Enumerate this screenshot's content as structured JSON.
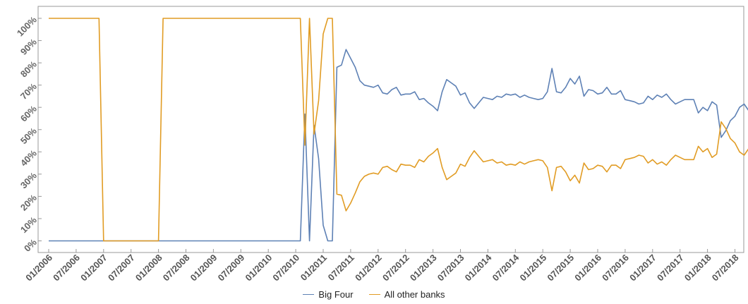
{
  "chart_data": {
    "type": "line",
    "title": "",
    "xlabel": "",
    "ylabel": "",
    "ylim": [
      0,
      100
    ],
    "y_ticks": [
      0,
      10,
      20,
      30,
      40,
      50,
      60,
      70,
      80,
      90,
      100
    ],
    "y_tick_labels": [
      "0%",
      "10%",
      "20%",
      "30%",
      "40%",
      "50%",
      "60%",
      "70%",
      "80%",
      "90%",
      "100%"
    ],
    "x_tick_labels": [
      "01/2006",
      "07/2006",
      "01/2007",
      "07/2007",
      "01/2008",
      "07/2008",
      "01/2009",
      "07/2009",
      "01/2010",
      "07/2010",
      "01/2011",
      "07/2011",
      "01/2012",
      "07/2012",
      "01/2013",
      "07/2013",
      "01/2014",
      "07/2014",
      "01/2015",
      "07/2015",
      "01/2016",
      "07/2016",
      "01/2017",
      "07/2017",
      "01/2018",
      "07/2018"
    ],
    "grid": false,
    "legend_position": "bottom-center",
    "series": [
      {
        "name": "Big Four",
        "color": "#5E81B5",
        "points": [
          [
            "2006-01",
            0
          ],
          [
            "2010-08",
            0
          ],
          [
            "2010-09",
            57
          ],
          [
            "2010-10",
            0
          ],
          [
            "2010-11",
            52
          ],
          [
            "2010-12",
            37
          ],
          [
            "2011-01",
            7
          ],
          [
            "2011-02",
            0
          ],
          [
            "2011-03",
            0
          ],
          [
            "2011-04",
            78
          ],
          [
            "2011-05",
            79
          ],
          [
            "2011-06",
            86
          ],
          [
            "2011-07",
            82
          ],
          [
            "2011-08",
            78
          ],
          [
            "2011-09",
            72
          ],
          [
            "2011-10",
            70
          ],
          [
            "2011-11",
            69.5
          ],
          [
            "2011-12",
            69
          ],
          [
            "2012-01",
            70
          ],
          [
            "2012-02",
            66.5
          ],
          [
            "2012-03",
            66
          ],
          [
            "2012-04",
            68
          ],
          [
            "2012-05",
            69
          ],
          [
            "2012-06",
            65.5
          ],
          [
            "2012-07",
            66
          ],
          [
            "2012-08",
            66
          ],
          [
            "2012-09",
            67
          ],
          [
            "2012-10",
            63.5
          ],
          [
            "2012-11",
            64
          ],
          [
            "2012-12",
            62
          ],
          [
            "2013-01",
            60.5
          ],
          [
            "2013-02",
            58.5
          ],
          [
            "2013-03",
            67
          ],
          [
            "2013-04",
            72.5
          ],
          [
            "2013-05",
            71
          ],
          [
            "2013-06",
            69.5
          ],
          [
            "2013-07",
            65.5
          ],
          [
            "2013-08",
            66.5
          ],
          [
            "2013-09",
            62
          ],
          [
            "2013-10",
            59.5
          ],
          [
            "2013-11",
            62
          ],
          [
            "2013-12",
            64.5
          ],
          [
            "2014-01",
            64
          ],
          [
            "2014-02",
            63.5
          ],
          [
            "2014-03",
            65
          ],
          [
            "2014-04",
            64.5
          ],
          [
            "2014-05",
            66
          ],
          [
            "2014-06",
            65.5
          ],
          [
            "2014-07",
            66
          ],
          [
            "2014-08",
            64.5
          ],
          [
            "2014-09",
            65.5
          ],
          [
            "2014-10",
            64.5
          ],
          [
            "2014-11",
            64
          ],
          [
            "2014-12",
            63.5
          ],
          [
            "2015-01",
            64
          ],
          [
            "2015-02",
            67
          ],
          [
            "2015-03",
            77.5
          ],
          [
            "2015-04",
            67
          ],
          [
            "2015-05",
            66.5
          ],
          [
            "2015-06",
            69
          ],
          [
            "2015-07",
            73
          ],
          [
            "2015-08",
            70.5
          ],
          [
            "2015-09",
            74
          ],
          [
            "2015-10",
            65
          ],
          [
            "2015-11",
            68
          ],
          [
            "2015-12",
            67.5
          ],
          [
            "2016-01",
            66
          ],
          [
            "2016-02",
            66.5
          ],
          [
            "2016-03",
            69
          ],
          [
            "2016-04",
            66
          ],
          [
            "2016-05",
            66
          ],
          [
            "2016-06",
            67.5
          ],
          [
            "2016-07",
            63.5
          ],
          [
            "2016-08",
            63
          ],
          [
            "2016-09",
            62.5
          ],
          [
            "2016-10",
            61.5
          ],
          [
            "2016-11",
            62
          ],
          [
            "2016-12",
            65
          ],
          [
            "2017-01",
            63.5
          ],
          [
            "2017-02",
            65.5
          ],
          [
            "2017-03",
            64.5
          ],
          [
            "2017-04",
            66
          ],
          [
            "2017-05",
            63.5
          ],
          [
            "2017-06",
            61.5
          ],
          [
            "2017-07",
            62.5
          ],
          [
            "2017-08",
            63.5
          ],
          [
            "2017-09",
            63.5
          ],
          [
            "2017-10",
            63.5
          ],
          [
            "2017-11",
            57.5
          ],
          [
            "2017-12",
            60
          ],
          [
            "2018-01",
            58.5
          ],
          [
            "2018-02",
            62.5
          ],
          [
            "2018-03",
            61
          ],
          [
            "2018-04",
            46.5
          ],
          [
            "2018-05",
            49.5
          ],
          [
            "2018-06",
            54
          ],
          [
            "2018-07",
            56
          ],
          [
            "2018-08",
            60
          ],
          [
            "2018-09",
            61.5
          ],
          [
            "2018-10",
            58.5
          ],
          [
            "2018-11",
            60
          ],
          [
            "2018-12",
            58.5
          ]
        ]
      },
      {
        "name": "All other banks",
        "color": "#E19C24",
        "points": [
          [
            "2006-01",
            100
          ],
          [
            "2006-12",
            100
          ],
          [
            "2007-01",
            0
          ],
          [
            "2008-01",
            0
          ],
          [
            "2008-02",
            100
          ],
          [
            "2010-08",
            100
          ],
          [
            "2010-09",
            43
          ],
          [
            "2010-10",
            100
          ],
          [
            "2010-11",
            48
          ],
          [
            "2010-12",
            63
          ],
          [
            "2011-01",
            93
          ],
          [
            "2011-02",
            100
          ],
          [
            "2011-03",
            100
          ],
          [
            "2011-04",
            21
          ],
          [
            "2011-05",
            20.5
          ],
          [
            "2011-06",
            13.5
          ],
          [
            "2011-07",
            17
          ],
          [
            "2011-08",
            21.5
          ],
          [
            "2011-09",
            26.5
          ],
          [
            "2011-10",
            29
          ],
          [
            "2011-11",
            30
          ],
          [
            "2011-12",
            30.5
          ],
          [
            "2012-01",
            30
          ],
          [
            "2012-02",
            33
          ],
          [
            "2012-03",
            33.5
          ],
          [
            "2012-04",
            32
          ],
          [
            "2012-05",
            31
          ],
          [
            "2012-06",
            34.5
          ],
          [
            "2012-07",
            34
          ],
          [
            "2012-08",
            34
          ],
          [
            "2012-09",
            33
          ],
          [
            "2012-10",
            36.5
          ],
          [
            "2012-11",
            35.5
          ],
          [
            "2012-12",
            38
          ],
          [
            "2013-01",
            39.5
          ],
          [
            "2013-02",
            41.5
          ],
          [
            "2013-03",
            33
          ],
          [
            "2013-04",
            27.5
          ],
          [
            "2013-05",
            29
          ],
          [
            "2013-06",
            30.5
          ],
          [
            "2013-07",
            34.5
          ],
          [
            "2013-08",
            33.5
          ],
          [
            "2013-09",
            37.5
          ],
          [
            "2013-10",
            40.5
          ],
          [
            "2013-11",
            38
          ],
          [
            "2013-12",
            35.5
          ],
          [
            "2014-01",
            36
          ],
          [
            "2014-02",
            36.5
          ],
          [
            "2014-03",
            35
          ],
          [
            "2014-04",
            35.5
          ],
          [
            "2014-05",
            34
          ],
          [
            "2014-06",
            34.5
          ],
          [
            "2014-07",
            34
          ],
          [
            "2014-08",
            35.5
          ],
          [
            "2014-09",
            34.5
          ],
          [
            "2014-10",
            35.5
          ],
          [
            "2014-11",
            36
          ],
          [
            "2014-12",
            36.5
          ],
          [
            "2015-01",
            36
          ],
          [
            "2015-02",
            33
          ],
          [
            "2015-03",
            22.5
          ],
          [
            "2015-04",
            33
          ],
          [
            "2015-05",
            33.5
          ],
          [
            "2015-06",
            31
          ],
          [
            "2015-07",
            27
          ],
          [
            "2015-08",
            29.5
          ],
          [
            "2015-09",
            26
          ],
          [
            "2015-10",
            35
          ],
          [
            "2015-11",
            32
          ],
          [
            "2015-12",
            32.5
          ],
          [
            "2016-01",
            34
          ],
          [
            "2016-02",
            33.5
          ],
          [
            "2016-03",
            31
          ],
          [
            "2016-04",
            34
          ],
          [
            "2016-05",
            34
          ],
          [
            "2016-06",
            32.5
          ],
          [
            "2016-07",
            36.5
          ],
          [
            "2016-08",
            37
          ],
          [
            "2016-09",
            37.5
          ],
          [
            "2016-10",
            38.5
          ],
          [
            "2016-11",
            38
          ],
          [
            "2016-12",
            35
          ],
          [
            "2017-01",
            36.5
          ],
          [
            "2017-02",
            34.5
          ],
          [
            "2017-03",
            35.5
          ],
          [
            "2017-04",
            34
          ],
          [
            "2017-05",
            36.5
          ],
          [
            "2017-06",
            38.5
          ],
          [
            "2017-07",
            37.5
          ],
          [
            "2017-08",
            36.5
          ],
          [
            "2017-09",
            36.5
          ],
          [
            "2017-10",
            36.5
          ],
          [
            "2017-11",
            42.5
          ],
          [
            "2017-12",
            40
          ],
          [
            "2018-01",
            41.5
          ],
          [
            "2018-02",
            37.5
          ],
          [
            "2018-03",
            39
          ],
          [
            "2018-04",
            53.5
          ],
          [
            "2018-05",
            50.5
          ],
          [
            "2018-06",
            46
          ],
          [
            "2018-07",
            44
          ],
          [
            "2018-08",
            40
          ],
          [
            "2018-09",
            38.5
          ],
          [
            "2018-10",
            41.5
          ],
          [
            "2018-11",
            40
          ],
          [
            "2018-12",
            41.5
          ]
        ]
      }
    ]
  }
}
